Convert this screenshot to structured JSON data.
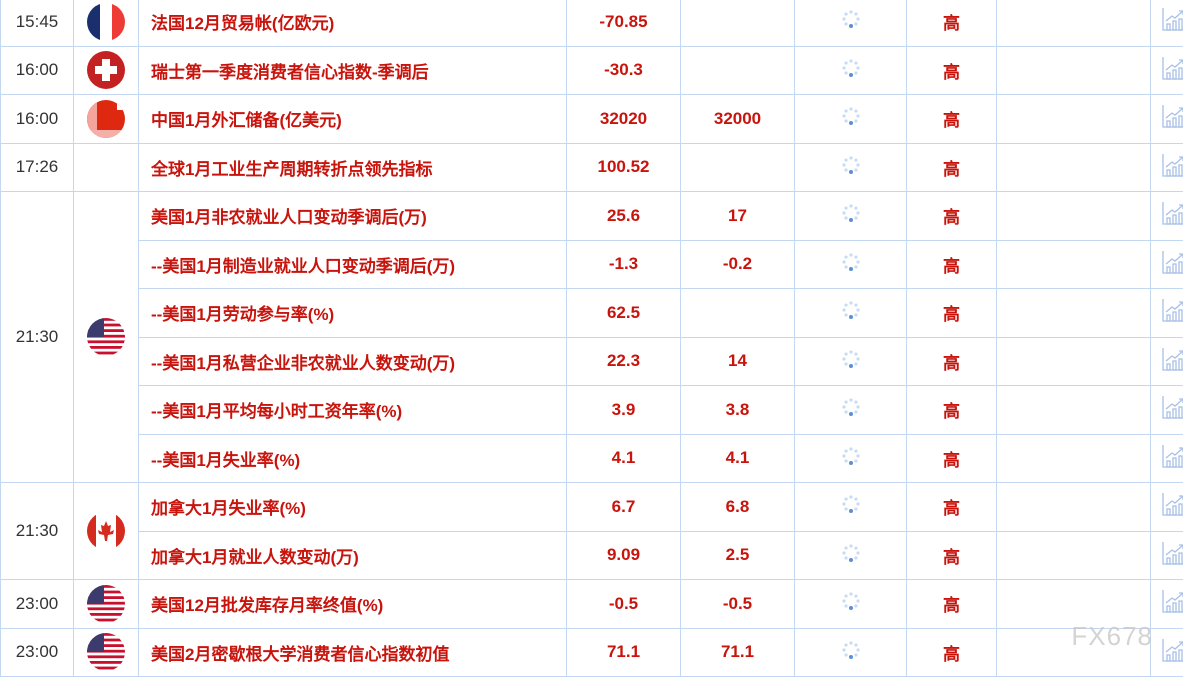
{
  "colors": {
    "text_red": "#c8140c",
    "border": "#c3d7f3",
    "spinner": "#5b8fd6"
  },
  "watermark": "FX678",
  "groups": [
    {
      "time": "15:45",
      "flag": "france",
      "rows": [
        {
          "name": "法国12月贸易帐(亿欧元)",
          "previous": "-70.85",
          "forecast": "",
          "importance": "高"
        }
      ]
    },
    {
      "time": "16:00",
      "flag": "switzerland",
      "rows": [
        {
          "name": "瑞士第一季度消费者信心指数-季调后",
          "previous": "-30.3",
          "forecast": "",
          "importance": "高"
        }
      ]
    },
    {
      "time": "16:00",
      "flag": "china",
      "rows": [
        {
          "name": "中国1月外汇储备(亿美元)",
          "previous": "32020",
          "forecast": "32000",
          "importance": "高"
        }
      ]
    },
    {
      "time": "17:26",
      "flag": "",
      "rows": [
        {
          "name": "全球1月工业生产周期转折点领先指标",
          "previous": "100.52",
          "forecast": "",
          "importance": "高"
        }
      ]
    },
    {
      "time": "21:30",
      "flag": "usa",
      "rows": [
        {
          "name": "美国1月非农就业人口变动季调后(万)",
          "previous": "25.6",
          "forecast": "17",
          "importance": "高"
        },
        {
          "name": "--美国1月制造业就业人口变动季调后(万)",
          "previous": "-1.3",
          "forecast": "-0.2",
          "importance": "高"
        },
        {
          "name": "--美国1月劳动参与率(%)",
          "previous": "62.5",
          "forecast": "",
          "importance": "高"
        },
        {
          "name": "--美国1月私营企业非农就业人数变动(万)",
          "previous": "22.3",
          "forecast": "14",
          "importance": "高"
        },
        {
          "name": "--美国1月平均每小时工资年率(%)",
          "previous": "3.9",
          "forecast": "3.8",
          "importance": "高"
        },
        {
          "name": "--美国1月失业率(%)",
          "previous": "4.1",
          "forecast": "4.1",
          "importance": "高"
        }
      ]
    },
    {
      "time": "21:30",
      "flag": "canada",
      "rows": [
        {
          "name": "加拿大1月失业率(%)",
          "previous": "6.7",
          "forecast": "6.8",
          "importance": "高"
        },
        {
          "name": "加拿大1月就业人数变动(万)",
          "previous": "9.09",
          "forecast": "2.5",
          "importance": "高"
        }
      ]
    },
    {
      "time": "23:00",
      "flag": "usa",
      "rows": [
        {
          "name": "美国12月批发库存月率终值(%)",
          "previous": "-0.5",
          "forecast": "-0.5",
          "importance": "高"
        }
      ]
    },
    {
      "time": "23:00",
      "flag": "usa",
      "rows": [
        {
          "name": "美国2月密歇根大学消费者信心指数初值",
          "previous": "71.1",
          "forecast": "71.1",
          "importance": "高"
        }
      ]
    }
  ]
}
